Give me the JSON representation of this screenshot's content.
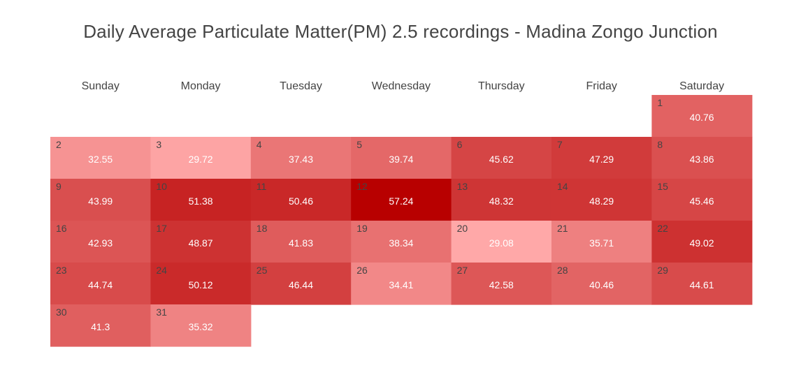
{
  "chart_data": {
    "type": "heatmap",
    "title": "Daily Average Particulate Matter(PM) 2.5 recordings - Madina Zongo Junction",
    "weekdays": [
      "Sunday",
      "Monday",
      "Tuesday",
      "Wednesday",
      "Thursday",
      "Friday",
      "Saturday"
    ],
    "first_weekday_index": 6,
    "days": [
      1,
      2,
      3,
      4,
      5,
      6,
      7,
      8,
      9,
      10,
      11,
      12,
      13,
      14,
      15,
      16,
      17,
      18,
      19,
      20,
      21,
      22,
      23,
      24,
      25,
      26,
      27,
      28,
      29,
      30,
      31
    ],
    "values": [
      40.76,
      32.55,
      29.72,
      37.43,
      39.74,
      45.62,
      47.29,
      43.86,
      43.99,
      51.38,
      50.46,
      57.24,
      48.32,
      48.29,
      45.46,
      42.93,
      48.87,
      41.83,
      38.34,
      29.08,
      35.71,
      49.02,
      44.74,
      50.12,
      46.44,
      34.41,
      42.58,
      40.46,
      44.61,
      41.3,
      35.32
    ],
    "value_labels": [
      "40.76",
      "32.55",
      "29.72",
      "37.43",
      "39.74",
      "45.62",
      "47.29",
      "43.86",
      "43.99",
      "51.38",
      "50.46",
      "57.24",
      "48.32",
      "48.29",
      "45.46",
      "42.93",
      "48.87",
      "41.83",
      "38.34",
      "29.08",
      "35.71",
      "49.02",
      "44.74",
      "50.12",
      "46.44",
      "34.41",
      "42.58",
      "40.46",
      "44.61",
      "41.3",
      "35.32"
    ],
    "color_scale": {
      "low": "#ffa8a8",
      "high": "#b80000"
    }
  }
}
